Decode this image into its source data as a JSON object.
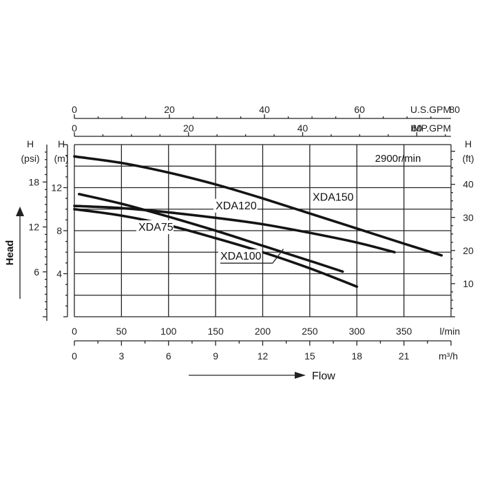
{
  "chart_data": {
    "type": "line",
    "title": "2900r/min",
    "head_label": "Head",
    "flow_label": "Flow",
    "axes": {
      "usgpm": {
        "unit": "U.S.GPM",
        "ticks": [
          0,
          20,
          40,
          60,
          80
        ],
        "range": [
          0,
          79.25
        ]
      },
      "impgpm": {
        "unit": "IMP.GPM",
        "ticks": [
          0,
          20,
          40,
          60
        ],
        "range": [
          0,
          66
        ]
      },
      "lmin": {
        "unit": "l/min",
        "ticks": [
          0,
          50,
          100,
          150,
          200,
          250,
          300,
          350
        ],
        "range": [
          0,
          400
        ]
      },
      "m3h": {
        "unit": "m³/h",
        "ticks": [
          0,
          3,
          6,
          9,
          12,
          15,
          18,
          21
        ],
        "range": [
          0,
          24
        ]
      },
      "head_m": {
        "unit_top": "H",
        "unit": "(m)",
        "ticks": [
          4,
          8,
          12
        ],
        "range": [
          0,
          16
        ]
      },
      "head_psi": {
        "unit_top": "H",
        "unit": "(psi)",
        "ticks": [
          6,
          12,
          18
        ],
        "range": [
          0,
          23
        ]
      },
      "head_ft": {
        "unit_top": "H",
        "unit": "(ft)",
        "ticks": [
          10,
          20,
          30,
          40
        ],
        "range": [
          0,
          52
        ]
      }
    },
    "series": [
      {
        "name": "XDA150",
        "x_lmin": [
          0,
          50,
          100,
          150,
          200,
          250,
          300,
          350,
          390
        ],
        "y_m": [
          14.9,
          14.3,
          13.4,
          12.3,
          11.0,
          9.6,
          8.2,
          6.8,
          5.7
        ]
      },
      {
        "name": "XDA120",
        "x_lmin": [
          0,
          50,
          100,
          150,
          200,
          250,
          300,
          340
        ],
        "y_m": [
          10.3,
          10.1,
          9.7,
          9.2,
          8.6,
          7.8,
          6.9,
          6.0
        ]
      },
      {
        "name": "XDA100",
        "x_lmin": [
          5,
          50,
          100,
          150,
          200,
          250,
          285
        ],
        "y_m": [
          11.4,
          10.5,
          9.3,
          8.0,
          6.6,
          5.2,
          4.2
        ]
      },
      {
        "name": "XDA75",
        "x_lmin": [
          0,
          50,
          100,
          150,
          200,
          250,
          300
        ],
        "y_m": [
          10.0,
          9.4,
          8.5,
          7.3,
          6.0,
          4.5,
          2.8
        ]
      }
    ]
  }
}
